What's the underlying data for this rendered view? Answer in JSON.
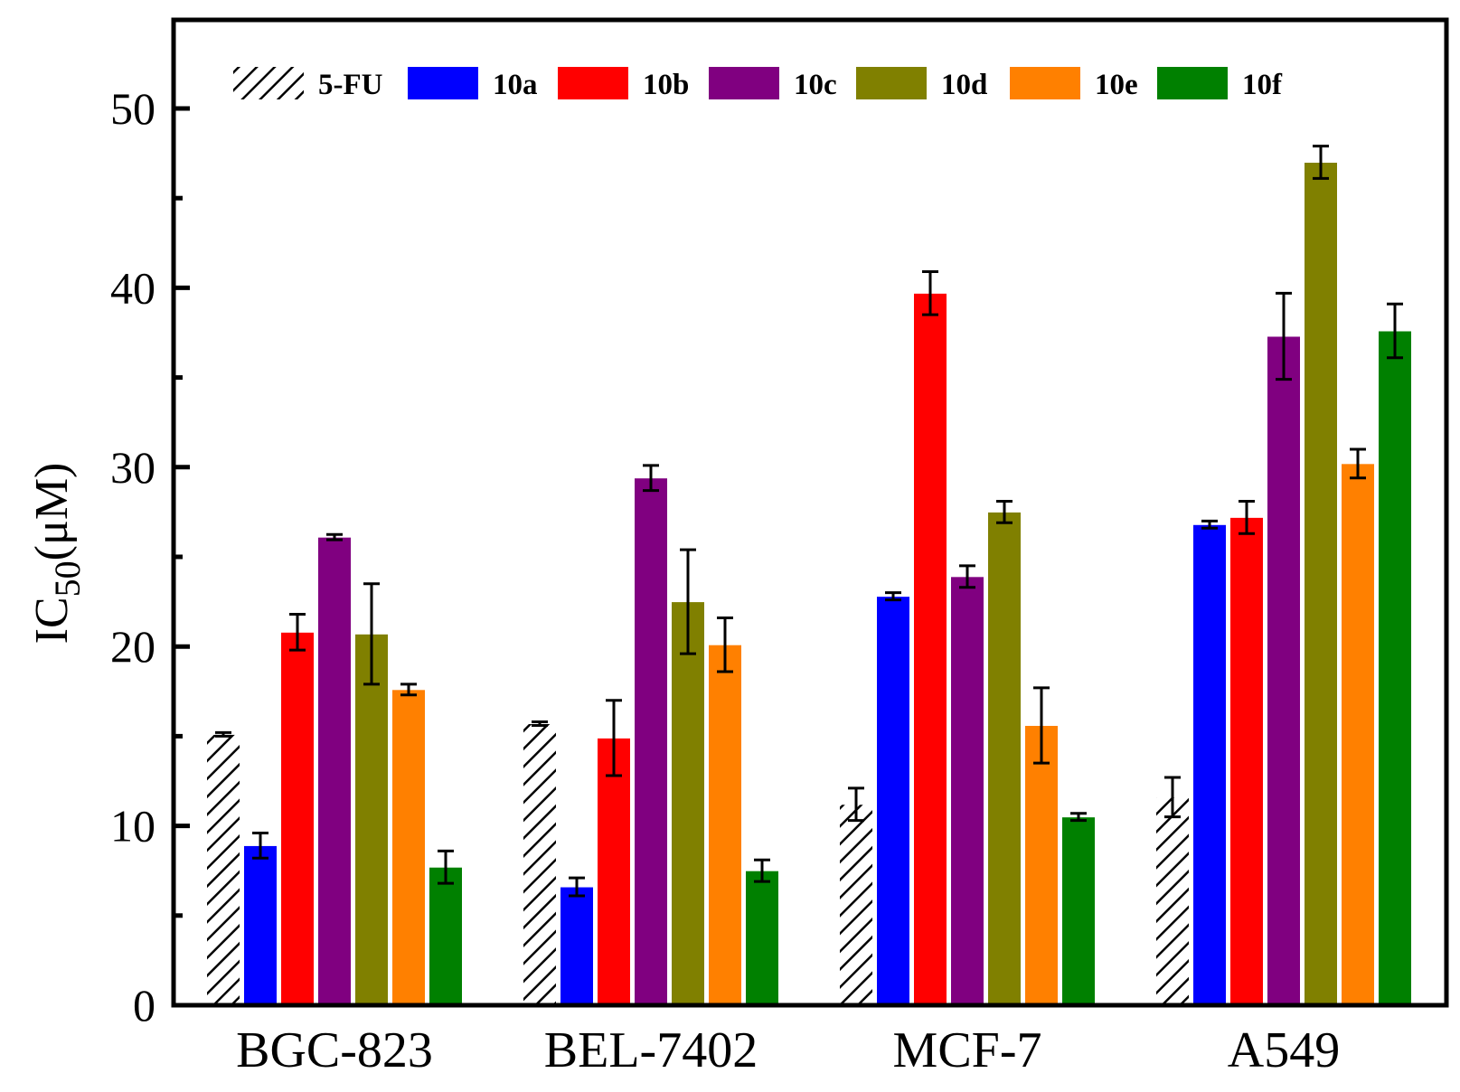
{
  "chart_data": {
    "type": "bar",
    "title": "",
    "xlabel": "",
    "ylabel": {
      "main": "IC",
      "subscript": "50",
      "unit": "(μM)"
    },
    "ylim": [
      0,
      55
    ],
    "yticks": [
      "0",
      "10",
      "20",
      "30",
      "40",
      "50"
    ],
    "grid": false,
    "legend_position": "top",
    "categories": [
      "BGC-823",
      "BEL-7402",
      "MCF-7",
      "A549"
    ],
    "series": [
      {
        "name": "5-FU",
        "pattern": "hatch",
        "color": "#000000",
        "values": [
          15.1,
          15.7,
          11.2,
          11.6
        ],
        "errors": [
          0.1,
          0.1,
          0.9,
          1.1
        ]
      },
      {
        "name": "10a",
        "color": "#0000ff",
        "values": [
          8.9,
          6.6,
          22.8,
          26.8
        ],
        "errors": [
          0.7,
          0.5,
          0.2,
          0.2
        ]
      },
      {
        "name": "10b",
        "color": "#ff0000",
        "values": [
          20.8,
          14.9,
          39.7,
          27.2
        ],
        "errors": [
          1.0,
          2.1,
          1.2,
          0.9
        ]
      },
      {
        "name": "10c",
        "color": "#800080",
        "values": [
          26.1,
          29.4,
          23.9,
          37.3
        ],
        "errors": [
          0.15,
          0.7,
          0.6,
          2.4
        ]
      },
      {
        "name": "10d",
        "color": "#808000",
        "values": [
          20.7,
          22.5,
          27.5,
          47.0
        ],
        "errors": [
          2.8,
          2.9,
          0.6,
          0.9
        ]
      },
      {
        "name": "10e",
        "color": "#ff8000",
        "values": [
          17.6,
          20.1,
          15.6,
          30.2
        ],
        "errors": [
          0.3,
          1.5,
          2.1,
          0.8
        ]
      },
      {
        "name": "10f",
        "color": "#008000",
        "values": [
          7.7,
          7.5,
          10.5,
          37.6
        ],
        "errors": [
          0.9,
          0.6,
          0.2,
          1.5
        ]
      }
    ]
  }
}
